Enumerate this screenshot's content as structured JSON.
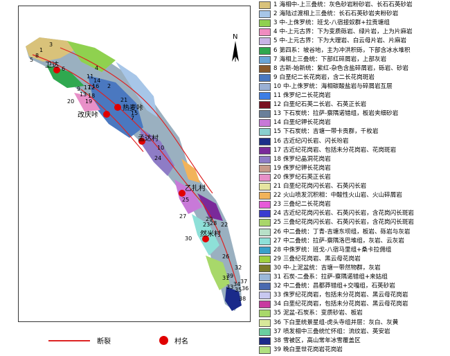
{
  "map": {
    "north_label": "N",
    "villages": [
      {
        "name": "卫达"
      },
      {
        "name": "热麦咔"
      },
      {
        "name": "改庆咔"
      },
      {
        "name": "孟达村"
      },
      {
        "name": "乙扎村"
      },
      {
        "name": "然米村"
      }
    ],
    "unit_labels": [
      "1",
      "2",
      "3",
      "4",
      "5",
      "6",
      "7",
      "8",
      "9",
      "10",
      "11",
      "12",
      "13",
      "14",
      "15",
      "16",
      "17",
      "18",
      "19",
      "20",
      "21",
      "22",
      "23",
      "24",
      "25",
      "26",
      "27",
      "28",
      "29",
      "30",
      "31",
      "32",
      "33",
      "34",
      "35",
      "36",
      "37",
      "38",
      "39"
    ]
  },
  "bottom_legend": {
    "fault_label": "断裂",
    "village_label": "村名",
    "fault_color": "#dd2222",
    "village_color": "#e00000"
  },
  "legend": [
    {
      "num": "1",
      "text": "海相中-上三叠统：灰色砂岩粉砂岩、长石石英砂岩",
      "color": "#d9c27a"
    },
    {
      "num": "2",
      "text": "海陆过渡相上三叠统：长石石英砂岩夹粉砂岩",
      "color": "#a7c6e8"
    },
    {
      "num": "3",
      "text": "中-上侏罗统：班戈-八宿接奴群+拉贡塘组",
      "color": "#8fd14f"
    },
    {
      "num": "4",
      "text": "中-上元古界：下为变质砾岩、绿片岩，上为片麻岩",
      "color": "#f08cc0"
    },
    {
      "num": "5",
      "text": "中-上元古界：下为大理岩、白云母片岩、片麻岩",
      "color": "#c9b4e6"
    },
    {
      "num": "6",
      "text": "第四系：坡谷地，主为冲洪积砾，下部含冰水堆积",
      "color": "#2fa84f"
    },
    {
      "num": "7",
      "text": "海相上三叠统：下部红碎屑岩，上部灰岩",
      "color": "#6aa6d8"
    },
    {
      "num": "8",
      "text": "古新-始新统：紫红-杂色含盐碎屑岩，砾岩、砂岩",
      "color": "#8a5a2b"
    },
    {
      "num": "9",
      "text": "白垩纪二长花岗岩，含二长花岗斑岩",
      "color": "#4a78c0"
    },
    {
      "num": "10",
      "text": "中-上侏罗统：海相碳酸盐岩与碎屑岩互层",
      "color": "#9ab0d4"
    },
    {
      "num": "11",
      "text": "侏罗纪二长花岗岩",
      "color": "#3d7ee6"
    },
    {
      "num": "12",
      "text": "白垩纪石英二长岩、石英正长岩",
      "color": "#7a1020"
    },
    {
      "num": "13",
      "text": "下石炭统：拉萨-察隅诺错组，板岩夹细砂岩",
      "color": "#6a7f9a"
    },
    {
      "num": "14",
      "text": "白垩纪钾长花岗岩",
      "color": "#c879d8"
    },
    {
      "num": "15",
      "text": "下石炭统：吉塘一带卡贡群，千枚岩",
      "color": "#8ad0d0"
    },
    {
      "num": "16",
      "text": "古近纪闪长岩、闪长玢岩",
      "color": "#1c2f8a"
    },
    {
      "num": "17",
      "text": "古近纪花岗岩、包括未分花岗岩、花岗斑岩",
      "color": "#7a2a9a"
    },
    {
      "num": "18",
      "text": "侏罗纪晶洞花岗岩",
      "color": "#8e7cc6"
    },
    {
      "num": "19",
      "text": "侏罗纪钾长花岗岩",
      "color": "#c89a8a"
    },
    {
      "num": "20",
      "text": "侏罗纪石英正长岩",
      "color": "#e890c8"
    },
    {
      "num": "21",
      "text": "白垩纪花岗闪长岩、石英闪长岩",
      "color": "#e6e6a0"
    },
    {
      "num": "22",
      "text": "火山喷发沉积相：中酸性火山岩、火山碎屑岩",
      "color": "#f2b35a"
    },
    {
      "num": "23",
      "text": "三叠纪二长花岗岩",
      "color": "#e65ad8"
    },
    {
      "num": "24",
      "text": "古近纪花岗闪长岩、石英闪长岩，含花岗闪长斑岩",
      "color": "#3a3ad0"
    },
    {
      "num": "25",
      "text": "三叠纪花岗闪长岩、石英闪长岩，含花岗闪长斑岩",
      "color": "#a9d66a"
    },
    {
      "num": "26",
      "text": "中二叠统：丁青-吉塘东坝组，板岩、砾岩与灰岩",
      "color": "#b8e0c8"
    },
    {
      "num": "27",
      "text": "中二叠统：拉萨-察隅洛巴堆组，灰岩、云灰岩",
      "color": "#8ee0d8"
    },
    {
      "num": "28",
      "text": "中侏罗统：班戈-八宿马里组+桑卡拉佣组",
      "color": "#3aa0c8"
    },
    {
      "num": "29",
      "text": "三叠纪花岗岩、黑云母花岗岩",
      "color": "#a0d040"
    },
    {
      "num": "30",
      "text": "中-上泥盆统：吉塘一带然物群，灰岩",
      "color": "#7a7a2a"
    },
    {
      "num": "31",
      "text": "石炭-二叠系：拉萨-察隅诺错组+来姑组",
      "color": "#9bb8d8"
    },
    {
      "num": "32",
      "text": "中二叠统：昌都莽错组+交嘎组，石英砂岩",
      "color": "#4a6ab0"
    },
    {
      "num": "33",
      "text": "侏罗纪花岗岩，包括未分花岗岩、黑云母花岗岩",
      "color": "#c8c8f0"
    },
    {
      "num": "34",
      "text": "白垩纪花岗岩，包括未分花岗岩、黑云母花岗岩",
      "color": "#c83aa0"
    },
    {
      "num": "35",
      "text": "泥盆-石炭系：变质砂岩、板岩",
      "color": "#a8d86a"
    },
    {
      "num": "36",
      "text": "下白垩统景星组-虎头寺组并层：灰白、灰黄",
      "color": "#d8e89a"
    },
    {
      "num": "37",
      "text": "喷发相中三叠统忙怀组：流纹岩、英安岩",
      "color": "#6ad0a0"
    },
    {
      "num": "38",
      "text": "雪被区，高山常年冰雪覆盖区",
      "color": "#1a2a8a"
    },
    {
      "num": "39",
      "text": "晚白垩世花岗岩花岗岩",
      "color": "#b0e080"
    }
  ]
}
